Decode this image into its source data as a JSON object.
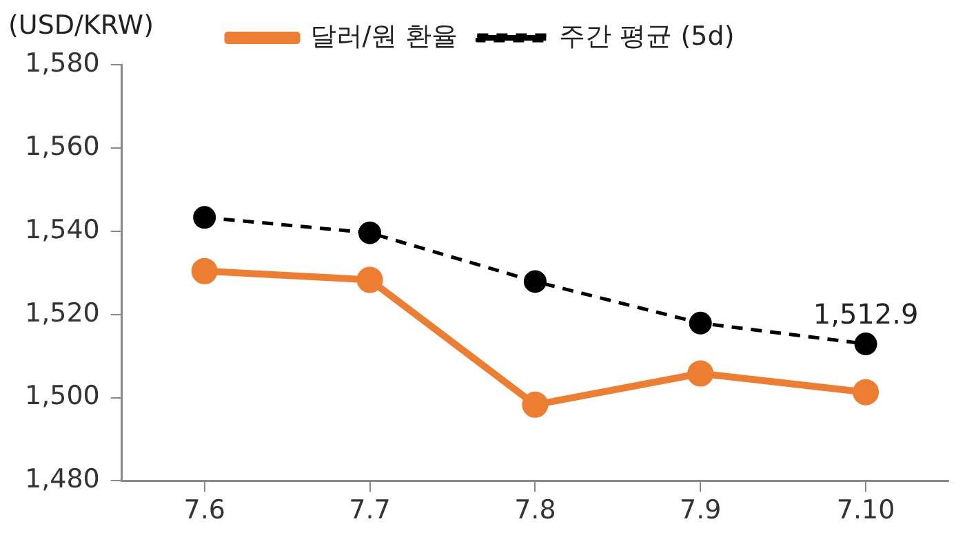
{
  "chart_data": {
    "type": "line",
    "ylabel": "(USD/KRW)",
    "categories": [
      "7.6",
      "7.7",
      "7.8",
      "7.9",
      "7.10"
    ],
    "series": [
      {
        "name": "달러/원 환율",
        "color": "#ed7d31",
        "values": [
          1530.4,
          1528.3,
          1498.3,
          1505.8,
          1501.3
        ],
        "line_style": "solid"
      },
      {
        "name": "주간 평균 (5d)",
        "color": "#000000",
        "values": [
          1543.3,
          1539.6,
          1527.9,
          1517.9,
          1512.9
        ],
        "line_style": "dashed",
        "value_labels": [
          null,
          null,
          null,
          null,
          "1,512.9"
        ]
      }
    ],
    "ylim": [
      1480,
      1580
    ],
    "yticks": [
      {
        "value": 1480,
        "label": "1,480"
      },
      {
        "value": 1500,
        "label": "1,500"
      },
      {
        "value": 1520,
        "label": "1,520"
      },
      {
        "value": 1540,
        "label": "1,540"
      },
      {
        "value": 1560,
        "label": "1,560"
      },
      {
        "value": 1580,
        "label": "1,580"
      }
    ],
    "grid": false,
    "legend": "top",
    "marker": "circle"
  }
}
